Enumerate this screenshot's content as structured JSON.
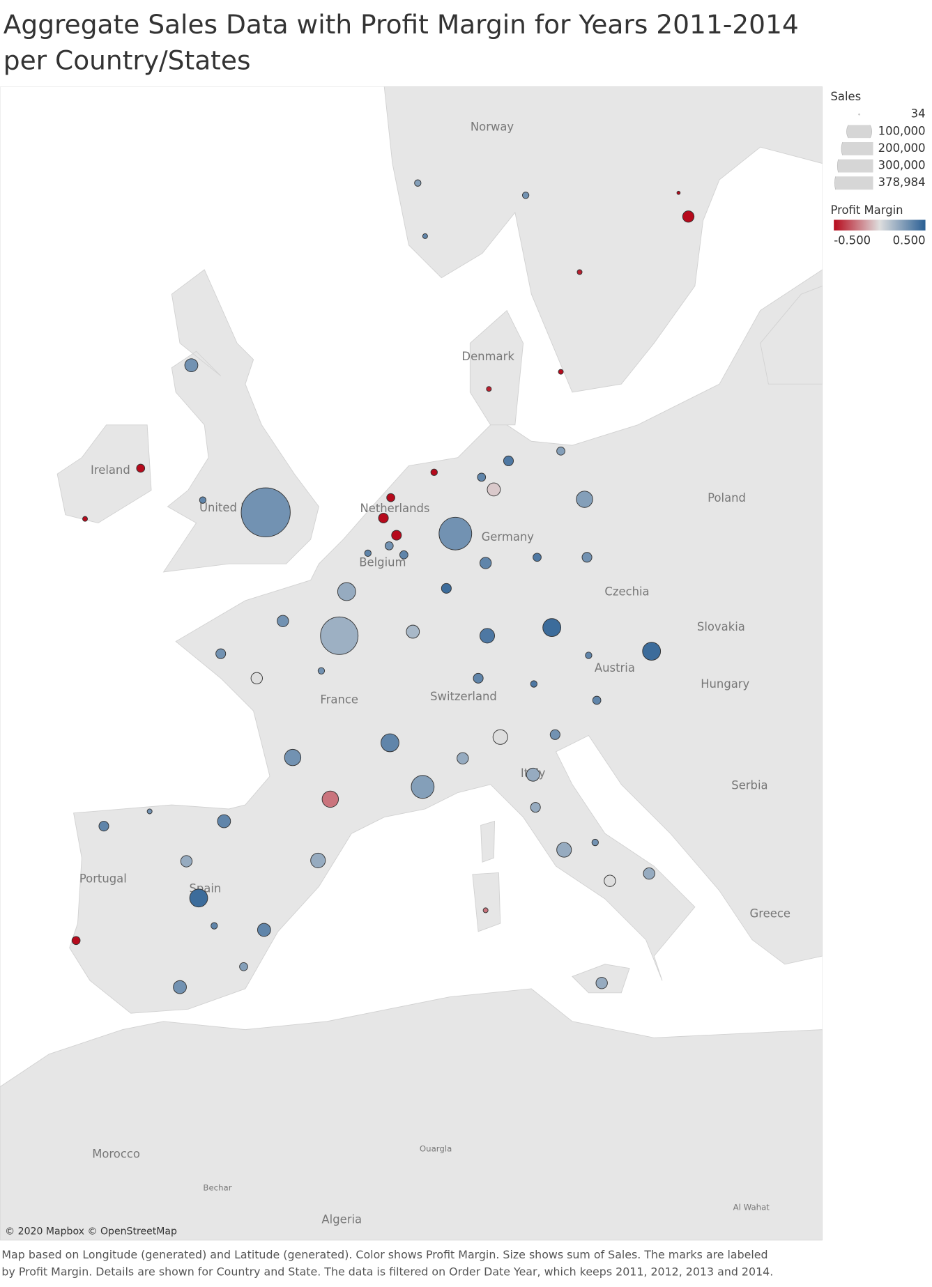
{
  "title": [
    "Aggregate Sales Data with Profit Margin for Years 2011-2014",
    "per Country/States"
  ],
  "map_labels": [
    "Norway",
    "Denmark",
    "Ireland",
    "United Kingdom",
    "Netherlands",
    "Belgium",
    "Germany",
    "Poland",
    "Czechia",
    "Slovakia",
    "Austria",
    "Hungary",
    "Switzerland",
    "France",
    "Italy",
    "Serbia",
    "Greece",
    "Portugal",
    "Spain",
    "Morocco",
    "Algeria",
    "Ouargla",
    "Bechar",
    "Al Wahat"
  ],
  "legend": {
    "size_title": "Sales",
    "size_ticks": [
      34,
      {
        "value": 100000,
        "label": "100,000"
      },
      {
        "value": 200000,
        "label": "200,000"
      },
      {
        "value": 300000,
        "label": "300,000"
      },
      {
        "value": 378984,
        "label": "378,984"
      }
    ],
    "color_title": "Profit Margin",
    "color_ticks": [
      {
        "value": -0.5,
        "label": "-0.500"
      },
      {
        "value": 0.5,
        "label": "0.500"
      }
    ],
    "color_range": [
      "#b60a1c",
      "#dedede",
      "#2a5f94"
    ]
  },
  "marks": [
    {
      "sales": 378984,
      "margin": 0.3
    },
    {
      "sales": 168400,
      "margin": 0.3
    },
    {
      "sales": 222800,
      "margin": 0.18
    },
    {
      "sales": 27000,
      "margin": 0.3
    },
    {
      "sales": 10500,
      "margin": -0.5
    },
    {
      "sales": 3800,
      "margin": -0.5
    },
    {
      "sales": 6700,
      "margin": 0.35
    },
    {
      "sales": 6700,
      "margin": 0.25
    },
    {
      "sales": 6700,
      "margin": 0.3
    },
    {
      "sales": 3800,
      "margin": 0.35
    },
    {
      "sales": 20600,
      "margin": -0.5
    },
    {
      "sales": 3800,
      "margin": -0.45
    },
    {
      "sales": 3800,
      "margin": -0.45
    },
    {
      "sales": 3800,
      "margin": -0.5
    },
    {
      "sales": 15200,
      "margin": 0.4
    },
    {
      "sales": 10500,
      "margin": 0.25
    },
    {
      "sales": 10500,
      "margin": 0.35
    },
    {
      "sales": 27000,
      "margin": -0.05
    },
    {
      "sales": 42100,
      "margin": 0.25
    },
    {
      "sales": 20600,
      "margin": 0.35
    },
    {
      "sales": 10500,
      "margin": 0.4
    },
    {
      "sales": 15200,
      "margin": 0.3
    },
    {
      "sales": 15200,
      "margin": 0.45
    },
    {
      "sales": 34100,
      "margin": 0.4
    },
    {
      "sales": 51000,
      "margin": 0.45
    },
    {
      "sales": 10500,
      "margin": -0.5
    },
    {
      "sales": 15200,
      "margin": -0.5
    },
    {
      "sales": 15200,
      "margin": -0.5
    },
    {
      "sales": 6700,
      "margin": -0.5
    },
    {
      "sales": 10500,
      "margin": 0.3
    },
    {
      "sales": 10500,
      "margin": 0.35
    },
    {
      "sales": 6700,
      "margin": 0.35
    },
    {
      "sales": 51000,
      "margin": 0.2
    },
    {
      "sales": 20600,
      "margin": 0.3
    },
    {
      "sales": 15200,
      "margin": 0.3
    },
    {
      "sales": 20600,
      "margin": 0.0
    },
    {
      "sales": 27000,
      "margin": 0.15
    },
    {
      "sales": 6700,
      "margin": 0.3
    },
    {
      "sales": 42100,
      "margin": 0.3
    },
    {
      "sales": 51000,
      "margin": 0.35
    },
    {
      "sales": 82500,
      "margin": 0.25
    },
    {
      "sales": 42100,
      "margin": -0.25
    },
    {
      "sales": 51000,
      "margin": 0.45
    },
    {
      "sales": 15200,
      "margin": 0.35
    },
    {
      "sales": 6700,
      "margin": 0.4
    },
    {
      "sales": 34100,
      "margin": 0.0
    },
    {
      "sales": 15200,
      "margin": 0.3
    },
    {
      "sales": 20600,
      "margin": 0.2
    },
    {
      "sales": 27000,
      "margin": 0.2
    },
    {
      "sales": 15200,
      "margin": 0.2
    },
    {
      "sales": 34100,
      "margin": 0.2
    },
    {
      "sales": 20600,
      "margin": 0.0
    },
    {
      "sales": 20600,
      "margin": 0.2
    },
    {
      "sales": 20600,
      "margin": 0.2
    },
    {
      "sales": 6700,
      "margin": 0.3
    },
    {
      "sales": 3800,
      "margin": -0.25
    },
    {
      "sales": 27000,
      "margin": 0.35
    },
    {
      "sales": 15200,
      "margin": 0.35
    },
    {
      "sales": 51000,
      "margin": 0.45
    },
    {
      "sales": 20600,
      "margin": 0.2
    },
    {
      "sales": 34100,
      "margin": 0.2
    },
    {
      "sales": 27000,
      "margin": 0.35
    },
    {
      "sales": 6700,
      "margin": 0.35
    },
    {
      "sales": 27000,
      "margin": 0.3
    },
    {
      "sales": 10500,
      "margin": 0.25
    },
    {
      "sales": 10500,
      "margin": -0.5
    },
    {
      "sales": 3800,
      "margin": 0.3
    },
    {
      "sales": 6700,
      "margin": 0.35
    },
    {
      "sales": 10500,
      "margin": 0.35
    },
    {
      "sales": 1700,
      "margin": -0.5
    }
  ],
  "attribution": "© 2020 Mapbox © OpenStreetMap",
  "caption": [
    "Map based on Longitude (generated) and Latitude (generated).  Color shows Profit Margin.  Size shows sum of Sales.  The marks are labeled",
    "by Profit Margin.  Details are shown for Country and State. The data is filtered on Order Date Year, which keeps 2011, 2012, 2013 and 2014."
  ]
}
